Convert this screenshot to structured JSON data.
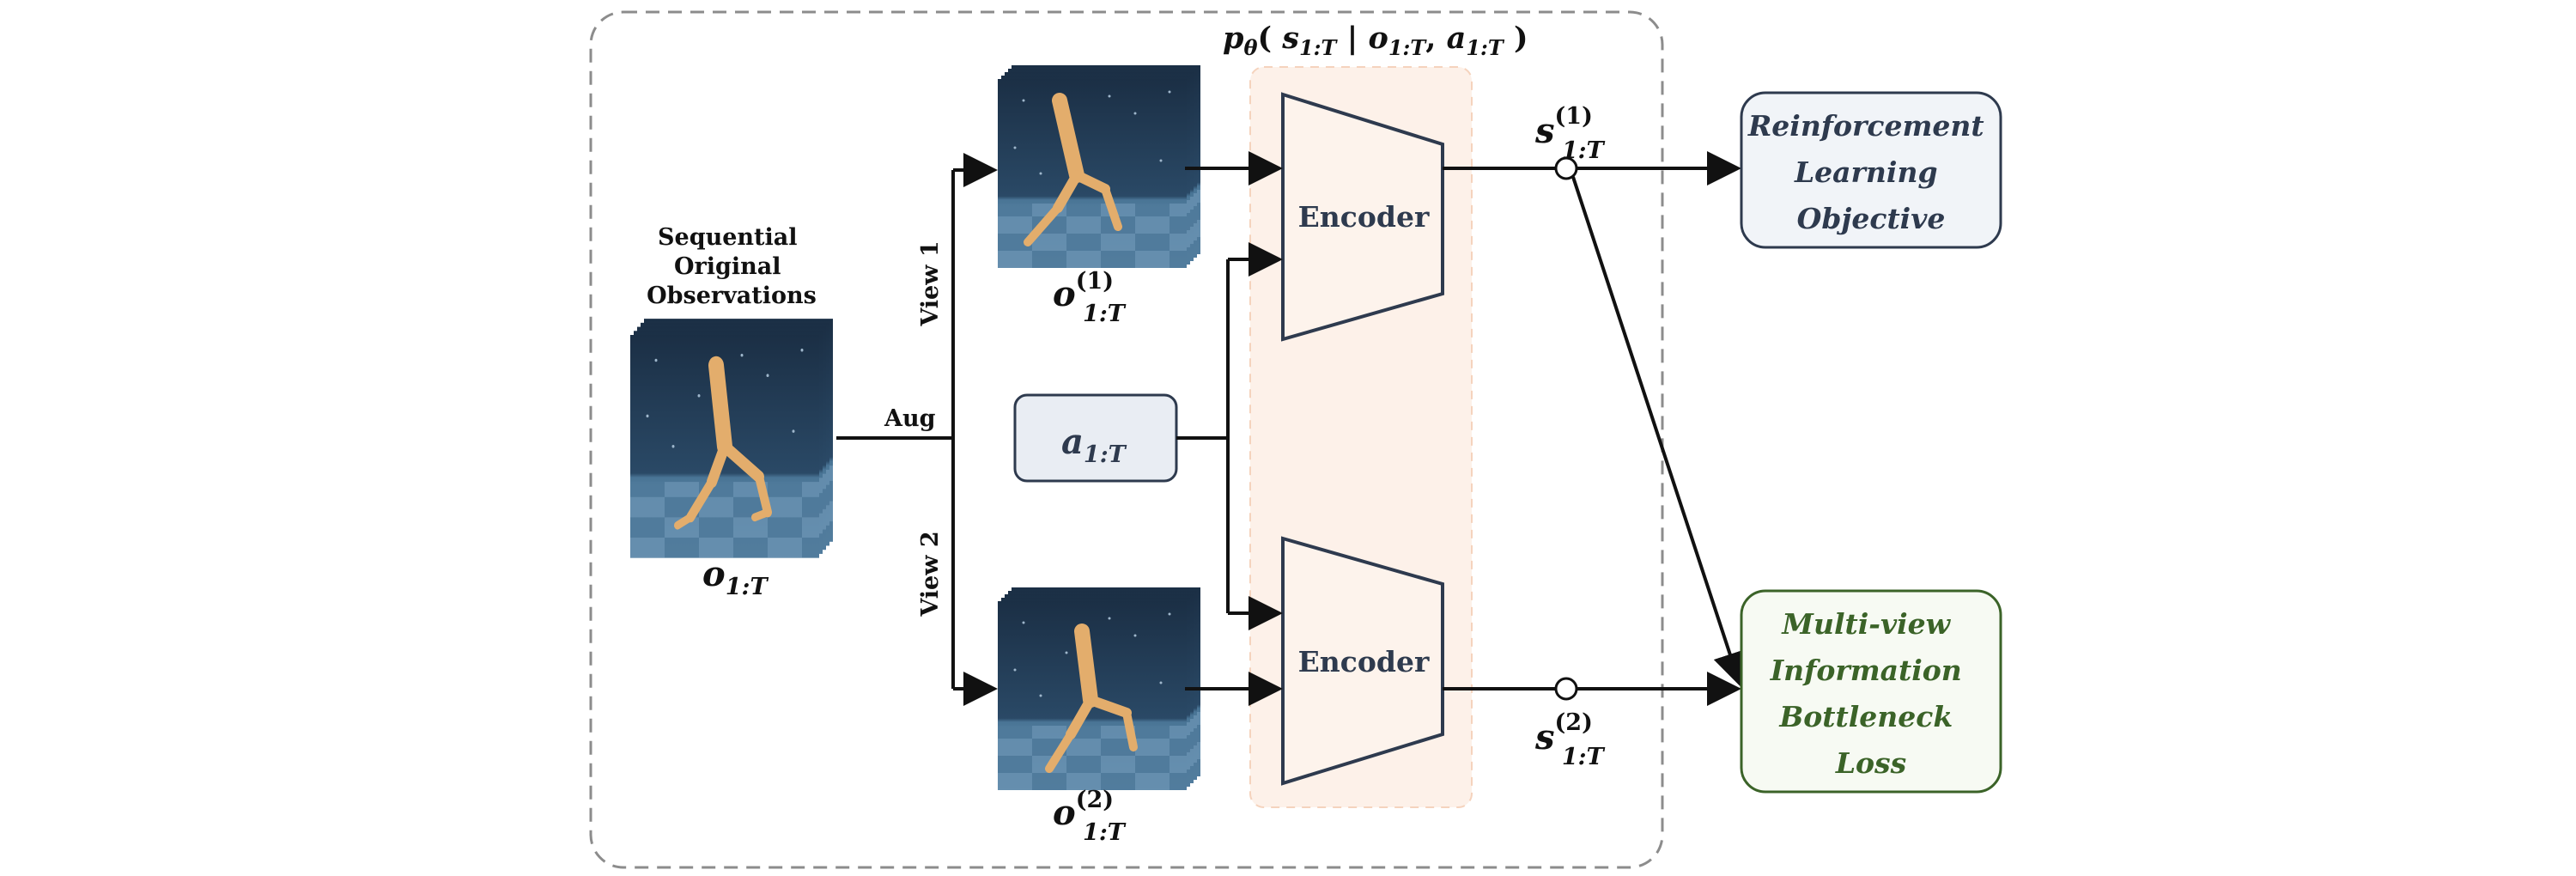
{
  "formula_top": {
    "p": "p",
    "theta": "θ",
    "open": "( ",
    "s": "s",
    "s_sub": "1:T",
    "bar": " | ",
    "o": "o",
    "o_sub": "1:T",
    "comma": ", ",
    "a": "a",
    "a_sub": "1:T",
    "close": " )"
  },
  "input": {
    "caption_lines": [
      "Sequential",
      "Original",
      "Observations"
    ],
    "symbol": "o",
    "symbol_sub": "1:T"
  },
  "aug_label": "Aug",
  "view1_label": "View 1",
  "view2_label": "View 2",
  "view1_obs": {
    "symbol": "o",
    "sup": "(1)",
    "sub": "1:T"
  },
  "view2_obs": {
    "symbol": "o",
    "sup": "(2)",
    "sub": "1:T"
  },
  "action": {
    "symbol": "a",
    "sub": "1:T"
  },
  "encoder1_label": "Encoder",
  "encoder2_label": "Encoder",
  "state1": {
    "symbol": "s",
    "sup": "(1)",
    "sub": "1:T"
  },
  "state2": {
    "symbol": "s",
    "sup": "(2)",
    "sub": "1:T"
  },
  "rl_objective_lines": [
    "Reinforcement",
    "Learning",
    "Objective"
  ],
  "mib_loss_lines": [
    "Multi-view",
    "Information",
    "Bottleneck",
    "Loss"
  ],
  "colors": {
    "dashed_border": "#8c8c8c",
    "encoder_region_fill": "#fdf1e9",
    "encoder_region_border": "#f5d3bd",
    "encoder_fill": "#fdf3ec",
    "encoder_stroke": "#2e3a4e",
    "text_dark": "#2e3a4e",
    "action_fill": "#e9edf3",
    "rl_box_fill": "#f1f4f8",
    "rl_box_border": "#2e3a4e",
    "mib_box_fill": "#f7faf3",
    "mib_box_border": "#3b6328",
    "mib_text": "#3b6328",
    "arrow": "#111111",
    "obs_bg_top": "#1b2f45",
    "obs_bg_bottom": "#3e6a8c",
    "robot_color": "#e3ad6c"
  }
}
